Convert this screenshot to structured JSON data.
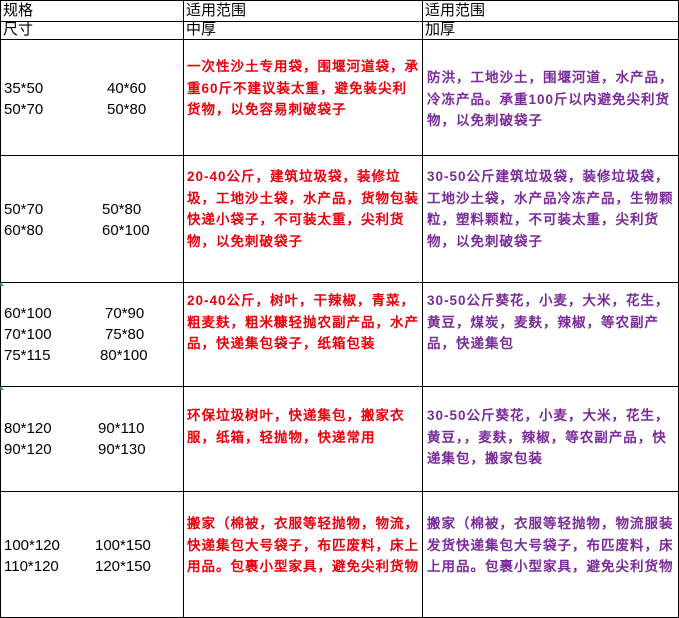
{
  "header": {
    "col1_line1": "规格",
    "col1_line2": "尺寸",
    "col2_line1": "适用范围",
    "col2_line2": "中厚",
    "col3_line1": "适用范围",
    "col3_line2": "加厚"
  },
  "rows": [
    {
      "sizes": [
        "35*50",
        "40*60",
        "50*70",
        "50*80"
      ],
      "medium": "一次性沙土专用袋，围堰河道袋，承重60斤不建议装太重，避免装尖利货物，以免容易刺破袋子",
      "thick": "防洪，工地沙土，围堰河道，水产品，冷冻产品。承重100斤以内避免尖利货物，以免刺破袋子"
    },
    {
      "sizes": [
        "50*70",
        "50*80",
        "60*80",
        "60*100"
      ],
      "medium": "20-40公斤，建筑垃圾袋，装修垃圾，工地沙土袋，水产品，货物包装快递小袋子，不可装太重，尖利货物，以免刺破袋子",
      "thick": "30-50公斤建筑垃圾袋，装修垃圾袋，工地沙土袋，水产品冷冻产品，生物颗粒，塑料颗粒，不可装太重，尖利货物，以免刺破袋子"
    },
    {
      "sizes": [
        "60*100",
        "70*90",
        "70*100",
        "75*80",
        "75*115",
        "80*100"
      ],
      "medium": "20-40公斤，树叶，干辣椒，青菜，粗麦麸，粗米糠轻抛农副产品，水产品，快递集包袋子，纸箱包装",
      "thick": "30-50公斤葵花，小麦，大米，花生，黄豆，煤炭，麦麸，辣椒，等农副产品，快递集包"
    },
    {
      "sizes": [
        "80*120",
        "90*110",
        "90*120",
        "90*130"
      ],
      "medium": "环保垃圾树叶，快递集包，搬家衣服，纸箱，轻抛物，快递常用",
      "thick": "30-50公斤葵花，小麦，大米，花生，黄豆，，麦麸，辣椒，等农副产品，快递集包，搬家包装"
    },
    {
      "sizes": [
        "100*120",
        "100*150",
        "110*120",
        "120*150"
      ],
      "medium": "搬家（棉被，衣服等轻抛物，物流，快递集包大号袋子，布匹废料，床上用品。包裹小型家具，避免尖利货物",
      "thick": "搬家（棉被，衣服等轻抛物，物流服装发货快递集包大号袋子，布匹废料，床上用品。包裹小型家具，避免尖利货物"
    }
  ]
}
